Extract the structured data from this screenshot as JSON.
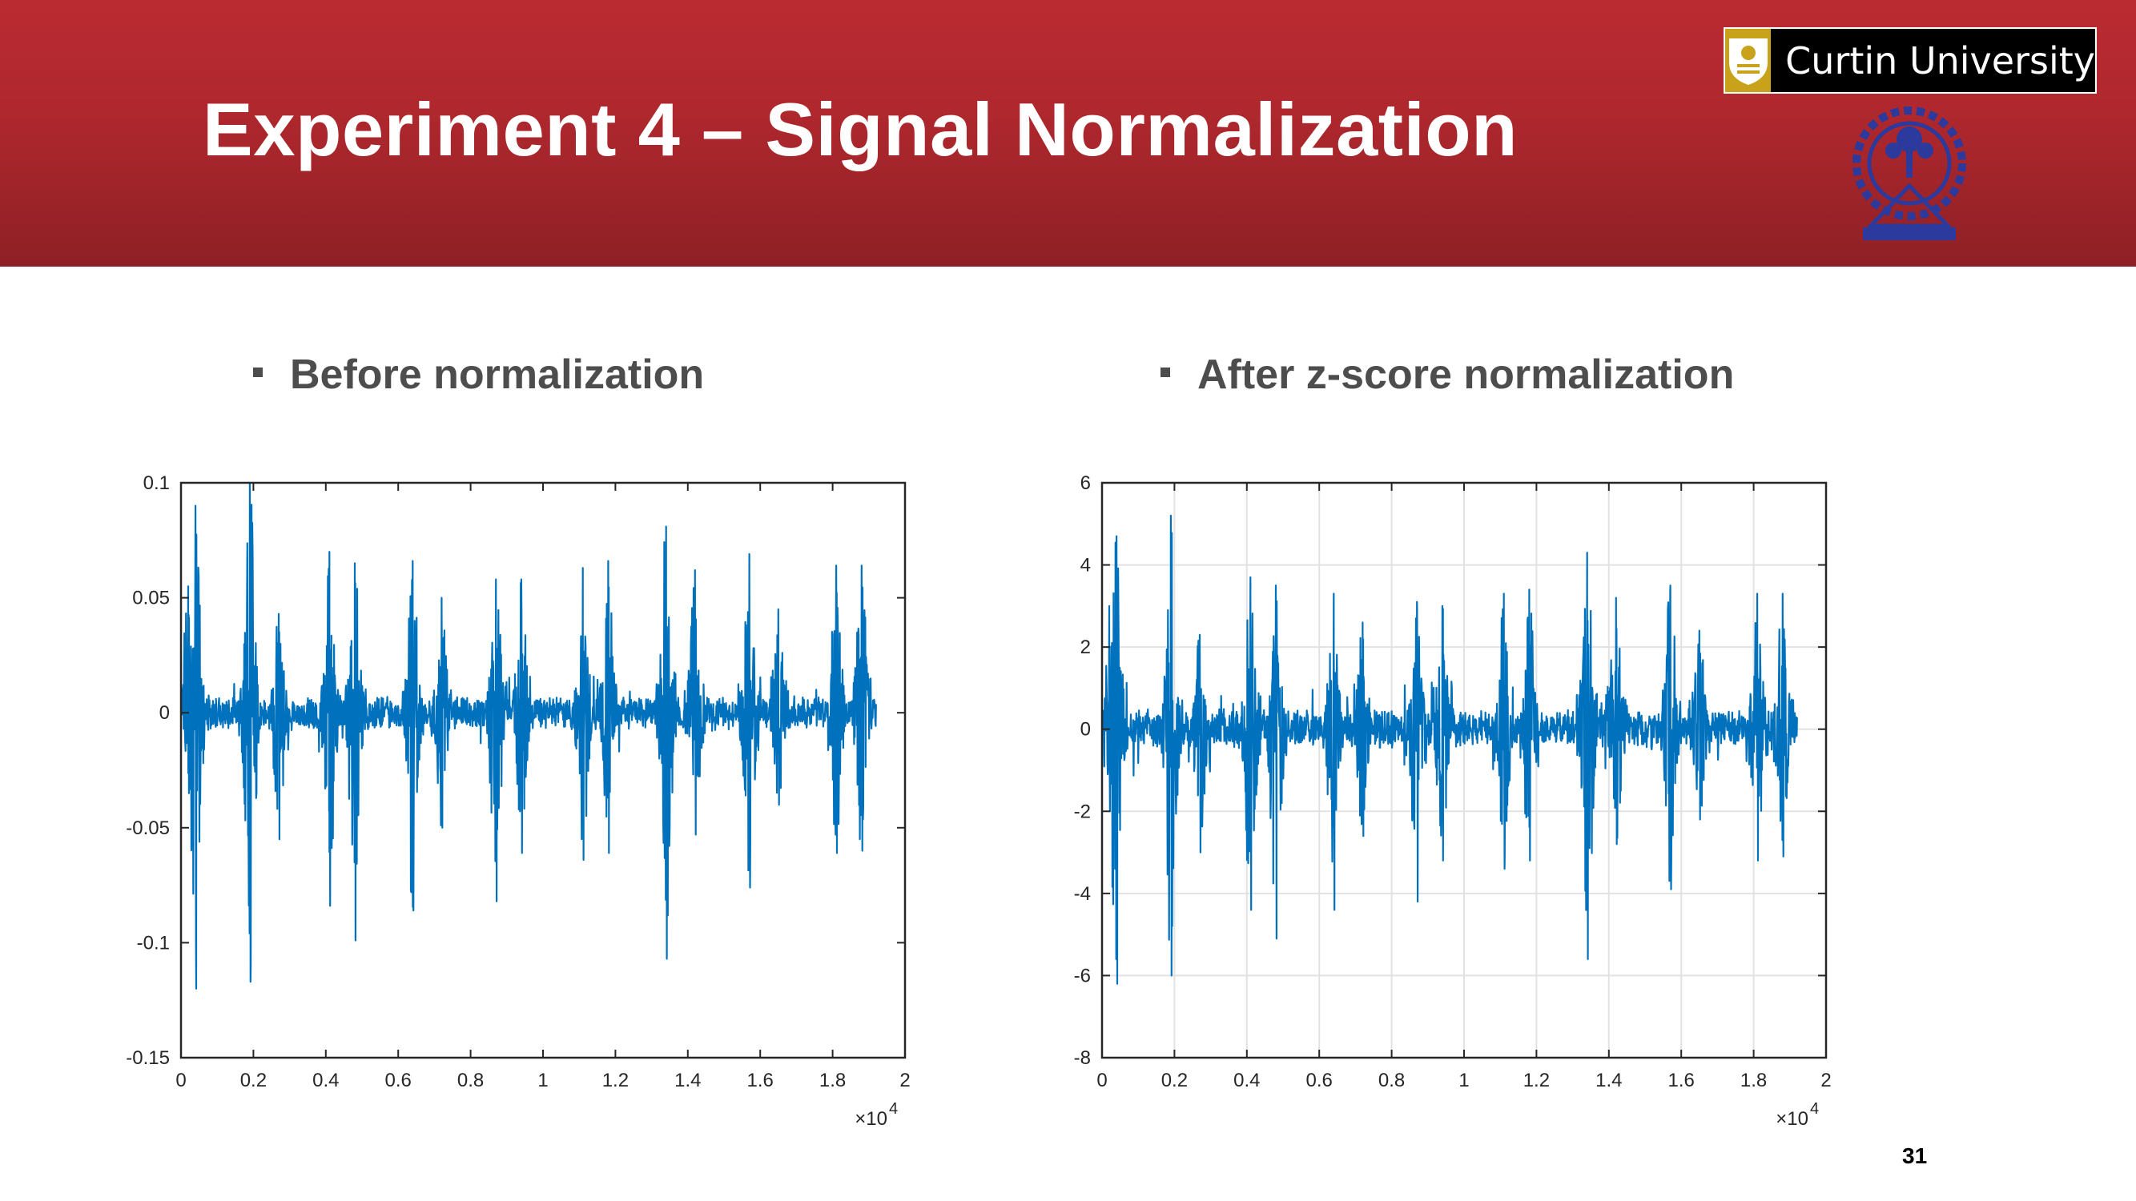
{
  "slide": {
    "title": "Experiment 4 – Signal Normalization",
    "page_number": "31",
    "colors": {
      "header_red": "#b0282e",
      "signal_blue": "#0072bd",
      "curtin_gold": "#c8a21b",
      "iit_blue": "#2b3a9c"
    }
  },
  "logos": {
    "curtin_text": "Curtin University",
    "curtin_icon": "curtin-shield-icon",
    "iit_icon": "iit-kharagpur-emblem-icon"
  },
  "bullets": {
    "before": "Before normalization",
    "after": "After z-score normalization"
  },
  "chart_data": [
    {
      "type": "line",
      "title": "",
      "xlabel": "",
      "ylabel": "",
      "xlim": [
        0,
        2
      ],
      "ylim": [
        -0.15,
        0.1
      ],
      "x_exponent_label": "×10",
      "x_exponent": "4",
      "x_ticks": [
        "0",
        "0.2",
        "0.4",
        "0.6",
        "0.8",
        "1",
        "1.2",
        "1.4",
        "1.6",
        "1.8",
        "2"
      ],
      "y_ticks": [
        "-0.15",
        "-0.1",
        "-0.05",
        "0",
        "0.05",
        "0.1"
      ],
      "grid": false,
      "series": [
        {
          "color": "#0072bd",
          "signal_end_x": 1.92,
          "noise_amplitude": 0.008,
          "bursts": [
            {
              "x": 0.02,
              "max": 0.055,
              "min": -0.035
            },
            {
              "x": 0.04,
              "max": 0.09,
              "min": -0.12
            },
            {
              "x": 0.19,
              "max": 0.1,
              "min": -0.117
            },
            {
              "x": 0.27,
              "max": 0.043,
              "min": -0.055
            },
            {
              "x": 0.41,
              "max": 0.07,
              "min": -0.084
            },
            {
              "x": 0.48,
              "max": 0.065,
              "min": -0.099
            },
            {
              "x": 0.64,
              "max": 0.066,
              "min": -0.086
            },
            {
              "x": 0.72,
              "max": 0.05,
              "min": -0.05
            },
            {
              "x": 0.87,
              "max": 0.058,
              "min": -0.082
            },
            {
              "x": 0.94,
              "max": 0.058,
              "min": -0.061
            },
            {
              "x": 1.11,
              "max": 0.063,
              "min": -0.064
            },
            {
              "x": 1.18,
              "max": 0.066,
              "min": -0.061
            },
            {
              "x": 1.34,
              "max": 0.081,
              "min": -0.107
            },
            {
              "x": 1.42,
              "max": 0.062,
              "min": -0.053
            },
            {
              "x": 1.57,
              "max": 0.069,
              "min": -0.076
            },
            {
              "x": 1.65,
              "max": 0.045,
              "min": -0.04
            },
            {
              "x": 1.81,
              "max": 0.064,
              "min": -0.061
            },
            {
              "x": 1.88,
              "max": 0.064,
              "min": -0.06
            }
          ]
        }
      ]
    },
    {
      "type": "line",
      "title": "",
      "xlabel": "",
      "ylabel": "",
      "xlim": [
        0,
        2
      ],
      "ylim": [
        -8,
        6
      ],
      "x_exponent_label": "×10",
      "x_exponent": "4",
      "x_ticks": [
        "0",
        "0.2",
        "0.4",
        "0.6",
        "0.8",
        "1",
        "1.2",
        "1.4",
        "1.6",
        "1.8",
        "2"
      ],
      "y_ticks": [
        "-8",
        "-6",
        "-4",
        "-2",
        "0",
        "2",
        "4",
        "6"
      ],
      "grid": true,
      "series": [
        {
          "color": "#0072bd",
          "signal_end_x": 1.92,
          "noise_amplitude": 0.5,
          "bursts": [
            {
              "x": 0.02,
              "max": 3.0,
              "min": -2.0
            },
            {
              "x": 0.04,
              "max": 4.7,
              "min": -6.2
            },
            {
              "x": 0.19,
              "max": 5.2,
              "min": -6.0
            },
            {
              "x": 0.27,
              "max": 2.3,
              "min": -3.0
            },
            {
              "x": 0.41,
              "max": 3.7,
              "min": -4.4
            },
            {
              "x": 0.48,
              "max": 3.5,
              "min": -5.1
            },
            {
              "x": 0.64,
              "max": 3.3,
              "min": -4.4
            },
            {
              "x": 0.72,
              "max": 2.6,
              "min": -2.6
            },
            {
              "x": 0.87,
              "max": 3.1,
              "min": -4.2
            },
            {
              "x": 0.94,
              "max": 3.0,
              "min": -3.2
            },
            {
              "x": 1.11,
              "max": 3.3,
              "min": -3.4
            },
            {
              "x": 1.18,
              "max": 3.4,
              "min": -3.2
            },
            {
              "x": 1.34,
              "max": 4.3,
              "min": -5.6
            },
            {
              "x": 1.42,
              "max": 3.2,
              "min": -2.8
            },
            {
              "x": 1.57,
              "max": 3.5,
              "min": -3.9
            },
            {
              "x": 1.65,
              "max": 2.4,
              "min": -2.2
            },
            {
              "x": 1.81,
              "max": 3.3,
              "min": -3.2
            },
            {
              "x": 1.88,
              "max": 3.3,
              "min": -3.1
            }
          ]
        }
      ]
    }
  ]
}
